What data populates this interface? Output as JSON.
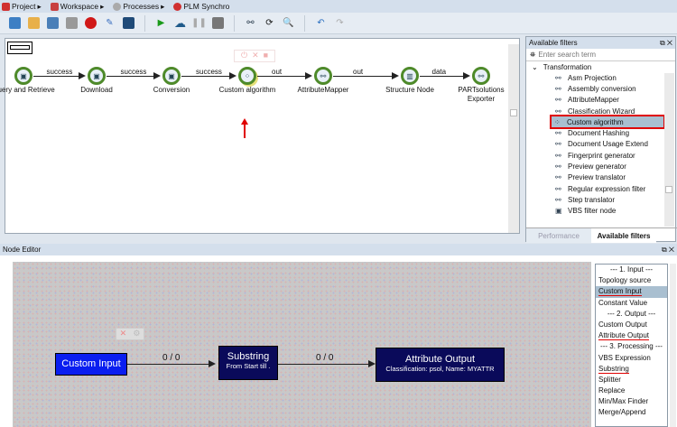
{
  "menubar": {
    "items": [
      {
        "label": "Project",
        "icon": "project-icon",
        "color": "#d03030"
      },
      {
        "label": "Workspace",
        "icon": "workspace-icon",
        "color": "#c84040"
      },
      {
        "label": "Processes",
        "icon": "gear-icon",
        "color": "#999999"
      },
      {
        "label": "PLM Synchro",
        "icon": "plm-gear-icon",
        "color": "#d03030"
      }
    ]
  },
  "workflow": {
    "nodes": [
      {
        "label": "Query and Retrieve"
      },
      {
        "label": "Download"
      },
      {
        "label": "Conversion"
      },
      {
        "label": "Custom algorithm"
      },
      {
        "label": "AttributeMapper"
      },
      {
        "label": "Structure Node"
      },
      {
        "label": "PARTsolutions Exporter"
      }
    ],
    "edges": [
      "success",
      "success",
      "success",
      "out",
      "out",
      "data"
    ]
  },
  "filters": {
    "title": "Available filters",
    "search_placeholder": "Enter search term",
    "group": "Transformation",
    "items": [
      "Asm Projection",
      "Assembly conversion",
      "AttributeMapper",
      "Classification Wizard",
      "Custom algorithm",
      "Document Hashing",
      "Document Usage Extend",
      "Fingerprint generator",
      "Preview generator",
      "Preview translator",
      "Regular expression filter",
      "Step translator",
      "VBS filter node"
    ],
    "selected": "Custom algorithm",
    "tabs": [
      "Performance",
      "Available filters"
    ],
    "active_tab": "Available filters"
  },
  "node_editor": {
    "title": "Node Editor",
    "nodes": {
      "input": "Custom Input",
      "substring": "Substring",
      "substring_sub": "From Start till .",
      "output": "Attribute Output",
      "output_sub": "Classification: psol, Name: MYATTR"
    },
    "edge_labels": [
      "0 / 0",
      "0 / 0"
    ],
    "operations": [
      {
        "label": "--- 1. Input ---",
        "header": true
      },
      {
        "label": "Topology source"
      },
      {
        "label": "Custom Input",
        "selected": true,
        "underlined": true
      },
      {
        "label": "Constant Value"
      },
      {
        "label": "--- 2. Output ---",
        "header": true
      },
      {
        "label": "Custom Output"
      },
      {
        "label": "Attribute Output",
        "underlined": true
      },
      {
        "label": "--- 3. Processing ---",
        "header": true
      },
      {
        "label": "VBS Expression"
      },
      {
        "label": "Substring",
        "underlined": true
      },
      {
        "label": "Splitter"
      },
      {
        "label": "Replace"
      },
      {
        "label": "Min/Max Finder"
      },
      {
        "label": "Merge/Append"
      }
    ]
  },
  "colors": {
    "accent_red": "#e00000",
    "node_green": "#4e8a2a",
    "custom_input_blue": "#0a1ef0",
    "dark_node": "#0a0a5a",
    "selection": "#a9bfd0"
  }
}
